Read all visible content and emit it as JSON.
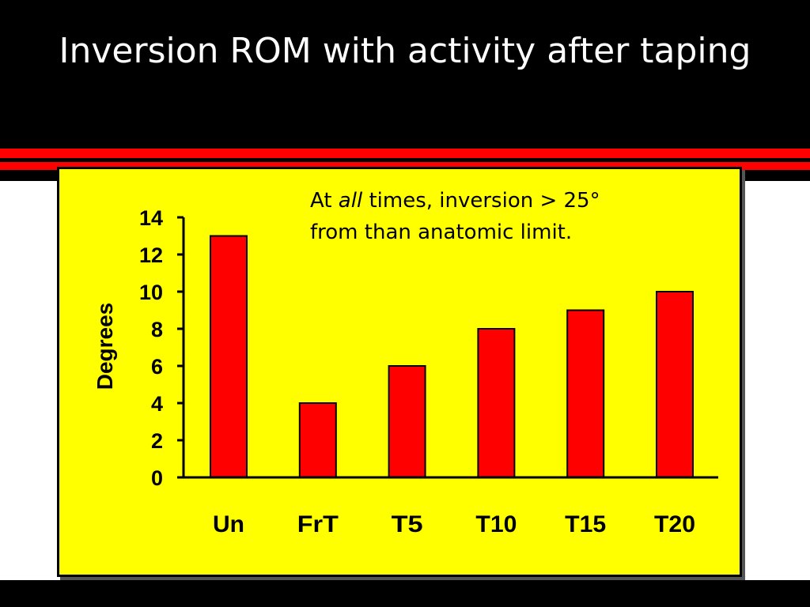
{
  "slide": {
    "title": "Inversion ROM with activity after taping"
  },
  "colors": {
    "background": "#000000",
    "stripe_red": "#ff0000",
    "panel": "#ffff00",
    "bar": "#ff0000",
    "text_light": "#ffffff",
    "text_dark": "#000000"
  },
  "annotation": {
    "prefix": "At ",
    "emphasis": "all",
    "suffix": " times, inversion > 25°",
    "line2": "from than anatomic limit."
  },
  "chart_data": {
    "type": "bar",
    "title": "",
    "xlabel": "",
    "ylabel": "Degrees",
    "categories": [
      "Un",
      "FrT",
      "T5",
      "T10",
      "T15",
      "T20"
    ],
    "values": [
      13,
      4,
      6,
      8,
      9,
      10
    ],
    "ylim": [
      0,
      14
    ],
    "yticks": [
      0,
      2,
      4,
      6,
      8,
      10,
      12,
      14
    ],
    "grid": false,
    "legend": "none"
  }
}
